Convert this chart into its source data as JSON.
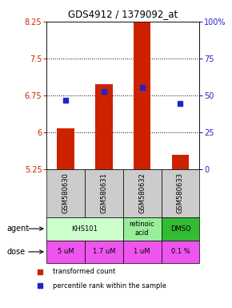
{
  "title": "GDS4912 / 1379092_at",
  "samples": [
    "GSM580630",
    "GSM580631",
    "GSM580632",
    "GSM580633"
  ],
  "bar_values": [
    6.08,
    6.98,
    8.45,
    5.55
  ],
  "bar_bottom": 5.25,
  "percentile_values": [
    6.65,
    6.83,
    6.92,
    6.58
  ],
  "ylim": [
    5.25,
    8.25
  ],
  "yticks": [
    5.25,
    6.0,
    6.75,
    7.5,
    8.25
  ],
  "ytick_labels": [
    "5.25",
    "6",
    "6.75",
    "7.5",
    "8.25"
  ],
  "y2_ticks": [
    0,
    25,
    50,
    75,
    100
  ],
  "y2_labels": [
    "0",
    "25",
    "50",
    "75",
    "100%"
  ],
  "bar_color": "#cc2200",
  "dot_color": "#2222cc",
  "agent_configs": [
    {
      "label": "KHS101",
      "start": 0,
      "end": 2,
      "color": "#ccffcc"
    },
    {
      "label": "retinoic\nacid",
      "start": 2,
      "end": 3,
      "color": "#99ee99"
    },
    {
      "label": "DMSO",
      "start": 3,
      "end": 4,
      "color": "#33bb33"
    }
  ],
  "dose_labels": [
    "5 uM",
    "1.7 uM",
    "1 uM",
    "0.1 %"
  ],
  "dose_color": "#ee55ee",
  "sample_bg_color": "#cccccc",
  "legend_bar_label": "transformed count",
  "legend_dot_label": "percentile rank within the sample",
  "xlabel_agent": "agent",
  "xlabel_dose": "dose",
  "gridlines": [
    6.0,
    6.75,
    7.5
  ]
}
